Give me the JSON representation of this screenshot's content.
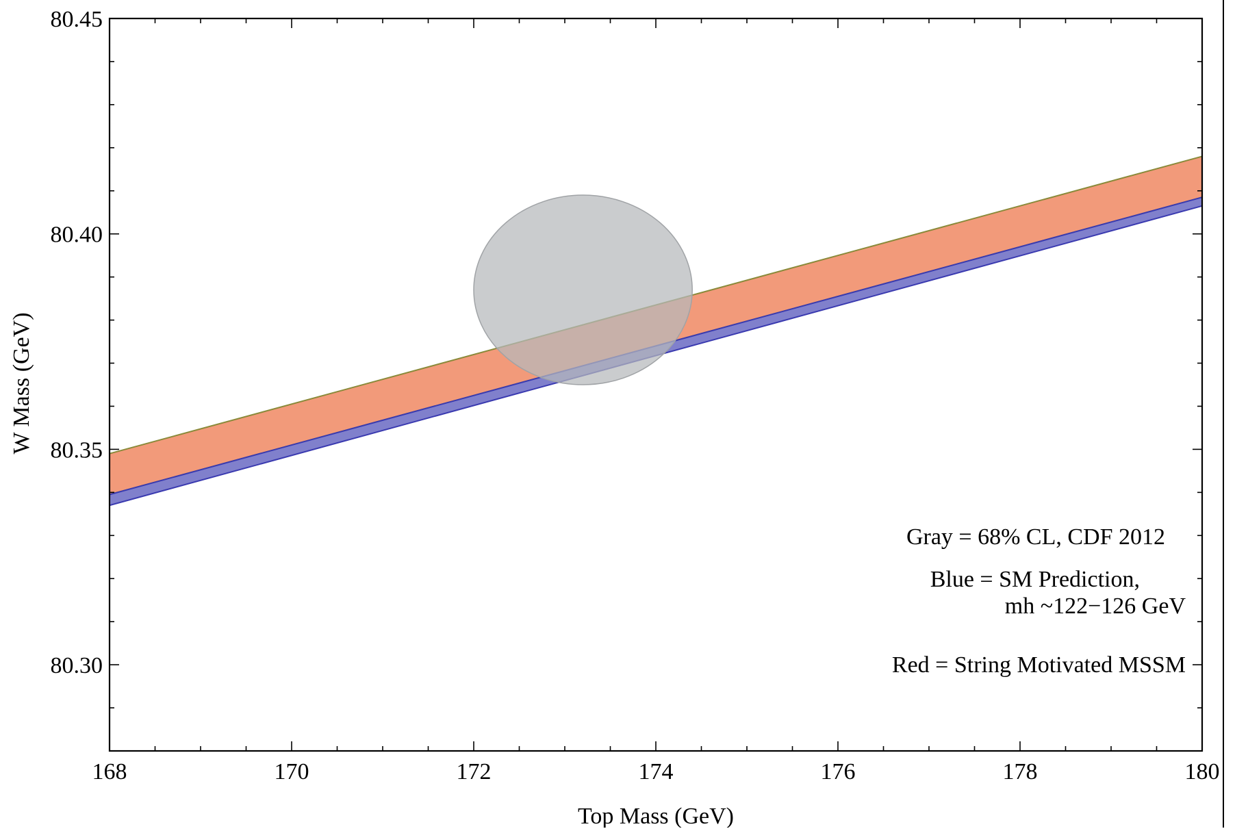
{
  "chart_data": {
    "type": "area",
    "title": "",
    "xlabel": "Top Mass (GeV)",
    "ylabel": "W Mass (GeV)",
    "xlim": [
      168,
      180
    ],
    "ylim": [
      80.28,
      80.45
    ],
    "x_ticks": [
      168,
      170,
      172,
      174,
      176,
      178,
      180
    ],
    "x_tick_labels": [
      "168",
      "170",
      "172",
      "174",
      "176",
      "178",
      "180"
    ],
    "y_ticks": [
      80.3,
      80.35,
      80.4,
      80.45
    ],
    "y_tick_labels": [
      "80.30",
      "80.35",
      "80.40",
      "80.45"
    ],
    "grid": false,
    "series": [
      {
        "color": "#f29a7a",
        "edge_color": "#8a8a3a",
        "x": [
          168,
          180
        ],
        "lower": [
          80.3395,
          80.4085
        ],
        "upper": [
          80.349,
          80.418
        ]
      },
      {
        "color": "#8080cc",
        "edge_color": "#3a3ab0",
        "x": [
          168,
          180
        ],
        "lower": [
          80.337,
          80.4065
        ],
        "upper": [
          80.3395,
          80.4085
        ]
      }
    ],
    "ellipse": {
      "color": "#b5b8bb",
      "center": [
        173.2,
        80.387
      ],
      "half_width": 1.2,
      "half_height": 0.022
    },
    "annotations": [
      {
        "text": "Gray = 68% CL, CDF 2012"
      },
      {
        "text": "Blue = SM Prediction,"
      },
      {
        "text": "mh ~122−126 GeV"
      },
      {
        "text": "Red = String Motivated MSSM"
      }
    ]
  }
}
